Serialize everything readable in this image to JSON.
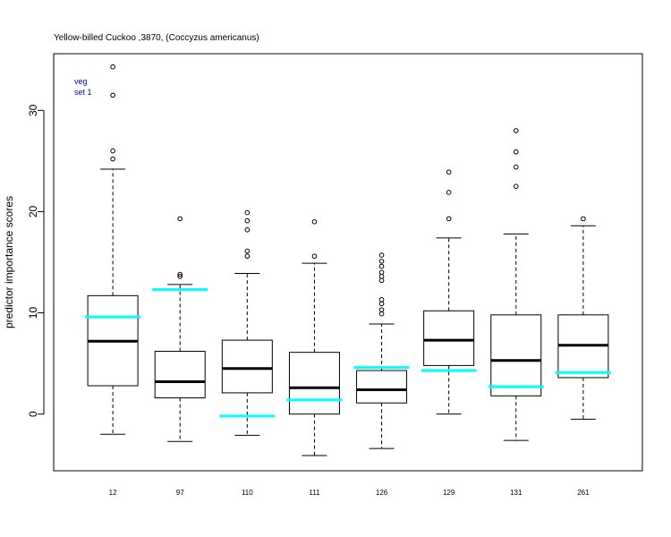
{
  "chart_data": {
    "type": "boxplot",
    "title": "Yellow-billed Cuckoo ,3870, (Coccyzus americanus)",
    "xlabel": "",
    "ylabel": "predictor importance scores",
    "ylim": [
      -5.6,
      35.6
    ],
    "yticks": [
      0,
      10,
      20,
      30
    ],
    "grid": false,
    "legend_position": "top-left",
    "legend": [
      "veg",
      "set 1"
    ],
    "legend_color": "#0000cc",
    "box_color": "#000000",
    "highlight_color": "#00ffff",
    "categories": [
      "12",
      "97",
      "110",
      "111",
      "126",
      "129",
      "131",
      "261"
    ],
    "boxes": [
      {
        "min": -2.0,
        "q1": 2.8,
        "median": 7.2,
        "q3": 11.7,
        "max": 24.2,
        "outliers": [
          25.2,
          26.0,
          31.5,
          34.3
        ],
        "highlight": 9.6
      },
      {
        "min": -2.7,
        "q1": 1.6,
        "median": 3.2,
        "q3": 6.2,
        "max": 12.8,
        "outliers": [
          13.6,
          13.8,
          19.3
        ],
        "highlight": 12.3
      },
      {
        "min": -2.1,
        "q1": 2.1,
        "median": 4.5,
        "q3": 7.3,
        "max": 13.9,
        "outliers": [
          15.6,
          16.1,
          18.2,
          19.1,
          19.9
        ],
        "highlight": -0.2
      },
      {
        "min": -4.1,
        "q1": 0.0,
        "median": 2.6,
        "q3": 6.1,
        "max": 14.9,
        "outliers": [
          15.6,
          19.0
        ],
        "highlight": 1.4
      },
      {
        "min": -3.4,
        "q1": 1.1,
        "median": 2.4,
        "q3": 4.3,
        "max": 8.9,
        "outliers": [
          9.9,
          10.3,
          10.9,
          11.3,
          13.2,
          13.6,
          14.0,
          14.6,
          15.1,
          15.7
        ],
        "highlight": 4.6
      },
      {
        "min": 0.0,
        "q1": 4.8,
        "median": 7.3,
        "q3": 10.2,
        "max": 17.4,
        "outliers": [
          19.3,
          21.9,
          23.9
        ],
        "highlight": 4.3
      },
      {
        "min": -2.6,
        "q1": 1.8,
        "median": 5.3,
        "q3": 9.8,
        "max": 17.8,
        "outliers": [
          22.5,
          24.4,
          25.9,
          28.0
        ],
        "highlight": 2.7
      },
      {
        "min": -0.5,
        "q1": 3.6,
        "median": 6.8,
        "q3": 9.8,
        "max": 18.6,
        "outliers": [
          19.3
        ],
        "highlight": 4.1
      }
    ]
  }
}
